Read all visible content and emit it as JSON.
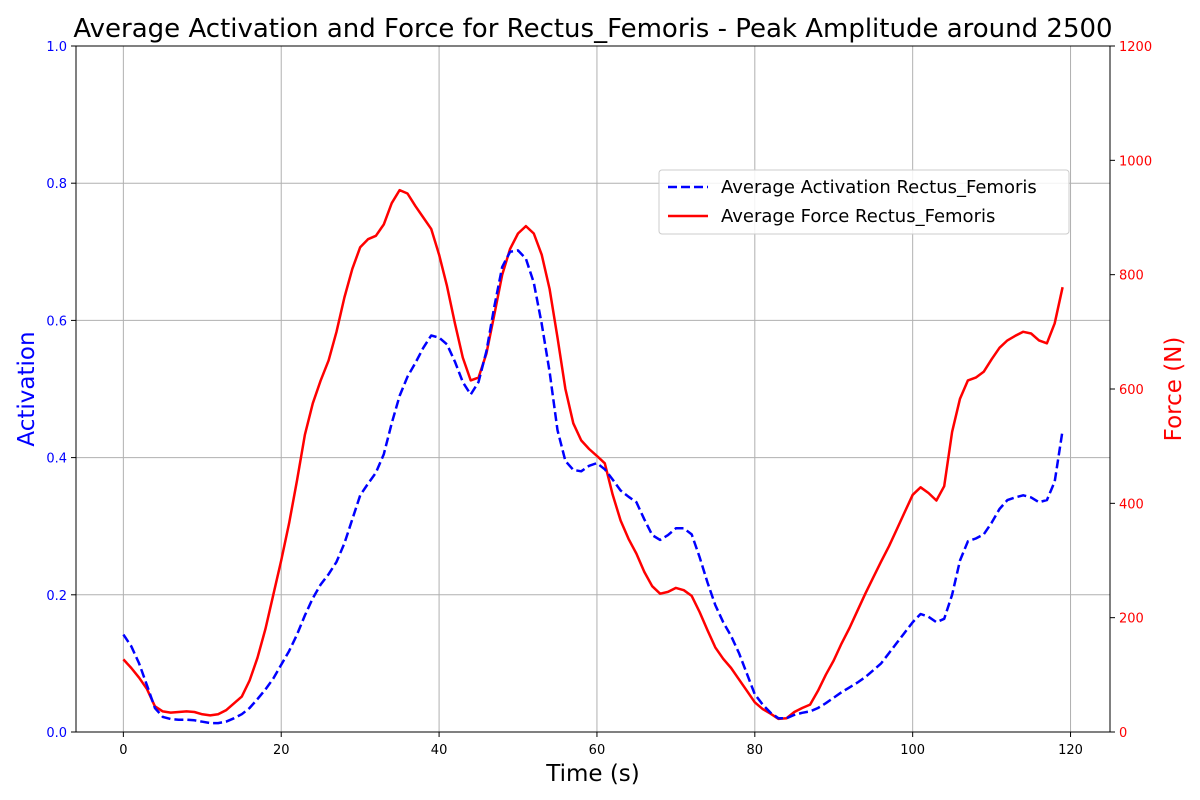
{
  "chart_data": {
    "type": "line",
    "title": "Average Activation and Force for Rectus_Femoris - Peak Amplitude around 2500",
    "xlabel": "Time (s)",
    "ylabel_left": "Activation",
    "ylabel_right": "Force (N)",
    "xlim": [
      -6,
      125
    ],
    "ylim_left": [
      0,
      1.0
    ],
    "ylim_right": [
      0,
      1200
    ],
    "x_ticks": [
      0,
      20,
      40,
      60,
      80,
      100,
      120
    ],
    "y_ticks_left": [
      0.0,
      0.2,
      0.4,
      0.6,
      0.8,
      1.0
    ],
    "y_ticks_left_labels": [
      "0.0",
      "0.2",
      "0.4",
      "0.6",
      "0.8",
      "1.0"
    ],
    "y_ticks_right": [
      0,
      200,
      400,
      600,
      800,
      1000,
      1200
    ],
    "grid": true,
    "legend_position": "upper-right",
    "colors": {
      "activation": "#0000ff",
      "force": "#ff0000",
      "grid": "#b0b0b0"
    },
    "x": [
      0,
      1,
      2,
      3,
      4,
      5,
      6,
      7,
      8,
      9,
      10,
      11,
      12,
      13,
      14,
      15,
      16,
      17,
      18,
      19,
      20,
      21,
      22,
      23,
      24,
      25,
      26,
      27,
      28,
      29,
      30,
      31,
      32,
      33,
      34,
      35,
      36,
      37,
      38,
      39,
      40,
      41,
      42,
      43,
      44,
      45,
      46,
      47,
      48,
      49,
      50,
      51,
      52,
      53,
      54,
      55,
      56,
      57,
      58,
      59,
      60,
      61,
      62,
      63,
      64,
      65,
      66,
      67,
      68,
      69,
      70,
      71,
      72,
      73,
      74,
      75,
      76,
      77,
      78,
      79,
      80,
      81,
      82,
      83,
      84,
      85,
      86,
      87,
      88,
      89,
      90,
      91,
      92,
      93,
      94,
      95,
      96,
      97,
      98,
      99,
      100,
      101,
      102,
      103,
      104,
      105,
      106,
      107,
      108,
      109,
      110,
      111,
      112,
      113,
      114,
      115,
      116,
      117,
      118,
      119
    ],
    "series": [
      {
        "name": "Average Activation Rectus_Femoris",
        "axis": "left",
        "style": "dashed",
        "values": [
          0.142,
          0.125,
          0.1,
          0.068,
          0.035,
          0.022,
          0.019,
          0.018,
          0.018,
          0.017,
          0.015,
          0.013,
          0.013,
          0.015,
          0.02,
          0.026,
          0.035,
          0.048,
          0.062,
          0.078,
          0.098,
          0.118,
          0.142,
          0.17,
          0.195,
          0.215,
          0.23,
          0.248,
          0.275,
          0.31,
          0.345,
          0.362,
          0.378,
          0.405,
          0.45,
          0.49,
          0.518,
          0.538,
          0.56,
          0.578,
          0.575,
          0.565,
          0.54,
          0.51,
          0.492,
          0.51,
          0.555,
          0.62,
          0.678,
          0.7,
          0.702,
          0.69,
          0.655,
          0.595,
          0.525,
          0.44,
          0.395,
          0.382,
          0.38,
          0.388,
          0.392,
          0.383,
          0.368,
          0.352,
          0.343,
          0.335,
          0.31,
          0.287,
          0.28,
          0.287,
          0.297,
          0.297,
          0.288,
          0.255,
          0.218,
          0.185,
          0.16,
          0.14,
          0.115,
          0.085,
          0.055,
          0.04,
          0.028,
          0.02,
          0.02,
          0.025,
          0.028,
          0.03,
          0.035,
          0.042,
          0.05,
          0.058,
          0.065,
          0.072,
          0.08,
          0.09,
          0.1,
          0.115,
          0.13,
          0.145,
          0.16,
          0.172,
          0.168,
          0.16,
          0.165,
          0.2,
          0.25,
          0.278,
          0.282,
          0.288,
          0.305,
          0.325,
          0.338,
          0.342,
          0.345,
          0.342,
          0.335,
          0.338,
          0.365,
          0.44
        ]
      },
      {
        "name": "Average Force Rectus_Femoris",
        "axis": "right",
        "style": "solid",
        "values": [
          127,
          112,
          95,
          75,
          45,
          36,
          34,
          35,
          36,
          35,
          31,
          29,
          31,
          38,
          50,
          62,
          90,
          130,
          180,
          240,
          300,
          365,
          440,
          520,
          575,
          615,
          650,
          700,
          760,
          810,
          848,
          862,
          868,
          888,
          925,
          948,
          942,
          920,
          900,
          880,
          835,
          780,
          715,
          655,
          615,
          620,
          662,
          730,
          800,
          845,
          872,
          885,
          872,
          835,
          775,
          690,
          600,
          540,
          510,
          495,
          483,
          470,
          415,
          370,
          338,
          312,
          280,
          255,
          242,
          245,
          252,
          248,
          238,
          210,
          178,
          148,
          128,
          112,
          92,
          72,
          52,
          40,
          32,
          23,
          24,
          35,
          42,
          48,
          72,
          100,
          125,
          155,
          182,
          212,
          242,
          270,
          298,
          325,
          355,
          385,
          415,
          428,
          418,
          405,
          430,
          525,
          583,
          615,
          620,
          630,
          652,
          672,
          685,
          693,
          700,
          697,
          685,
          680,
          715,
          778
        ]
      }
    ]
  }
}
